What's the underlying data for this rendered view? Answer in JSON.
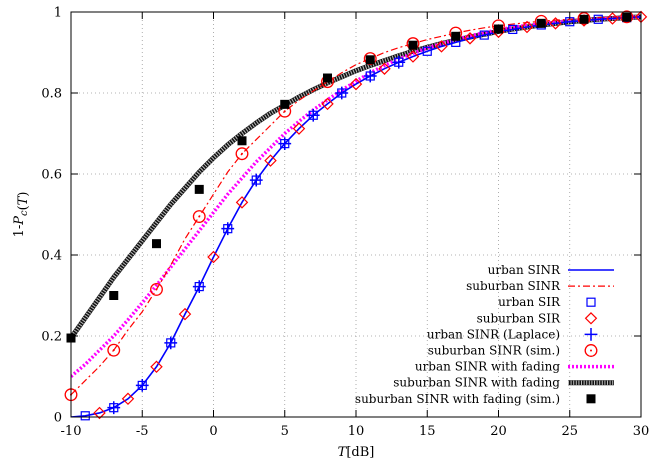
{
  "chart_data": {
    "type": "line",
    "title": "",
    "xlabel": "T[dB]",
    "ylabel": "1-Pc(T)",
    "xlim": [
      -10,
      30
    ],
    "ylim": [
      0,
      1
    ],
    "xticks": [
      "-10",
      "-5",
      "0",
      "5",
      "10",
      "15",
      "20",
      "25",
      "30"
    ],
    "yticks": [
      "0",
      "0.2",
      "0.4",
      "0.6",
      "0.8",
      "1"
    ],
    "grid": true,
    "grid_style": "dotted",
    "legend_position": "bottom-right",
    "series": [
      {
        "name": "urban SINR",
        "style": "line",
        "color": "#0000ff",
        "dash": "",
        "width": 1.6,
        "x": [
          -10,
          -9,
          -8,
          -7,
          -6,
          -5,
          -4,
          -3,
          -2,
          -1,
          0,
          1,
          2,
          3,
          4,
          5,
          6,
          7,
          8,
          9,
          10,
          11,
          12,
          13,
          14,
          15,
          16,
          17,
          18,
          19,
          20,
          21,
          22,
          23,
          24,
          25,
          26,
          27,
          28,
          29,
          30
        ],
        "y": [
          0.0,
          0.003,
          0.01,
          0.023,
          0.045,
          0.078,
          0.124,
          0.183,
          0.254,
          0.322,
          0.395,
          0.465,
          0.53,
          0.585,
          0.633,
          0.675,
          0.712,
          0.745,
          0.773,
          0.8,
          0.822,
          0.842,
          0.86,
          0.876,
          0.89,
          0.903,
          0.915,
          0.925,
          0.935,
          0.943,
          0.951,
          0.957,
          0.963,
          0.968,
          0.972,
          0.976,
          0.979,
          0.982,
          0.984,
          0.986,
          0.988
        ]
      },
      {
        "name": "suburban SINR",
        "style": "line",
        "color": "#ff0000",
        "dash": "7,3,2,3",
        "width": 1.2,
        "x": [
          -10,
          -9,
          -8,
          -7,
          -6,
          -5,
          -4,
          -3,
          -2,
          -1,
          0,
          1,
          2,
          3,
          4,
          5,
          6,
          7,
          8,
          9,
          10,
          11,
          12,
          13,
          14,
          15,
          16,
          17,
          18,
          19,
          20,
          21,
          22,
          23,
          24,
          25,
          26,
          27,
          28,
          29,
          30
        ],
        "y": [
          0.055,
          0.09,
          0.125,
          0.165,
          0.215,
          0.26,
          0.315,
          0.375,
          0.44,
          0.495,
          0.55,
          0.605,
          0.65,
          0.685,
          0.72,
          0.755,
          0.782,
          0.805,
          0.828,
          0.85,
          0.87,
          0.885,
          0.9,
          0.912,
          0.922,
          0.932,
          0.94,
          0.948,
          0.955,
          0.961,
          0.966,
          0.97,
          0.974,
          0.977,
          0.98,
          0.982,
          0.984,
          0.986,
          0.987,
          0.988,
          0.989
        ]
      },
      {
        "name": "urban SIR",
        "style": "markers",
        "marker": "square-open",
        "color": "#0000ff",
        "x": [
          -9,
          -7,
          -5,
          -3,
          -1,
          1,
          3,
          5,
          7,
          9,
          11,
          13,
          15,
          17,
          19,
          21,
          23,
          25,
          27,
          29
        ],
        "y": [
          0.003,
          0.023,
          0.078,
          0.183,
          0.322,
          0.465,
          0.585,
          0.675,
          0.745,
          0.8,
          0.842,
          0.876,
          0.903,
          0.925,
          0.943,
          0.957,
          0.968,
          0.976,
          0.982,
          0.986
        ]
      },
      {
        "name": "suburban SIR",
        "style": "markers",
        "marker": "diamond-open",
        "color": "#ff0000",
        "x": [
          -8,
          -6,
          -4,
          -2,
          0,
          2,
          4,
          6,
          8,
          10,
          12,
          14,
          16,
          18,
          20,
          22,
          24,
          26,
          28,
          30
        ],
        "y": [
          0.01,
          0.045,
          0.124,
          0.254,
          0.395,
          0.53,
          0.633,
          0.712,
          0.773,
          0.822,
          0.86,
          0.89,
          0.915,
          0.935,
          0.951,
          0.963,
          0.972,
          0.979,
          0.984,
          0.988
        ]
      },
      {
        "name": "urban SINR (Laplace)",
        "style": "markers",
        "marker": "plus",
        "color": "#0000ff",
        "x": [
          -7,
          -5,
          -3,
          -1,
          1,
          3,
          5,
          7,
          9,
          11,
          13
        ],
        "y": [
          0.023,
          0.078,
          0.183,
          0.322,
          0.465,
          0.585,
          0.675,
          0.745,
          0.8,
          0.842,
          0.876
        ]
      },
      {
        "name": "suburban SINR (sim.)",
        "style": "markers",
        "marker": "circle-open",
        "color": "#ff0000",
        "x": [
          -10,
          -7,
          -4,
          -1,
          2,
          5,
          8,
          11,
          14,
          17,
          20,
          23,
          26,
          29
        ],
        "y": [
          0.055,
          0.165,
          0.315,
          0.495,
          0.65,
          0.755,
          0.828,
          0.885,
          0.922,
          0.948,
          0.966,
          0.977,
          0.984,
          0.988
        ]
      },
      {
        "name": "suburban SINR with fading",
        "style": "line",
        "color": "#000000",
        "dash": "",
        "width": 5,
        "x": [
          -10,
          -9,
          -8,
          -7,
          -6,
          -5,
          -4,
          -3,
          -2,
          -1,
          0,
          1,
          2,
          3,
          4,
          5,
          6,
          7,
          8,
          9,
          10,
          11,
          12,
          13,
          14,
          15,
          16,
          17,
          18,
          19,
          20,
          21,
          22,
          23,
          24,
          25,
          26,
          27,
          28,
          29,
          30
        ],
        "y": [
          0.195,
          0.245,
          0.295,
          0.345,
          0.39,
          0.435,
          0.48,
          0.525,
          0.565,
          0.605,
          0.64,
          0.672,
          0.7,
          0.726,
          0.75,
          0.77,
          0.79,
          0.808,
          0.825,
          0.84,
          0.855,
          0.868,
          0.88,
          0.892,
          0.903,
          0.913,
          0.922,
          0.93,
          0.938,
          0.945,
          0.952,
          0.958,
          0.963,
          0.968,
          0.972,
          0.976,
          0.979,
          0.982,
          0.984,
          0.986,
          0.988
        ]
      },
      {
        "name": "urban SINR with fading",
        "style": "line",
        "color": "#ff00ff",
        "dash": "2,2",
        "width": 3.5,
        "x": [
          -10,
          -9,
          -8,
          -7,
          -6,
          -5,
          -4,
          -3,
          -2,
          -1,
          0,
          1,
          2,
          3,
          4,
          5,
          6,
          7,
          8,
          9,
          10,
          11,
          12,
          13,
          14,
          15,
          16,
          17,
          18,
          19,
          20,
          21,
          22,
          23,
          24,
          25,
          26,
          27,
          28,
          29,
          30
        ],
        "y": [
          0.1,
          0.13,
          0.165,
          0.2,
          0.24,
          0.282,
          0.325,
          0.37,
          0.415,
          0.46,
          0.505,
          0.55,
          0.59,
          0.63,
          0.665,
          0.7,
          0.73,
          0.758,
          0.783,
          0.807,
          0.829,
          0.85,
          0.868,
          0.884,
          0.898,
          0.911,
          0.922,
          0.932,
          0.941,
          0.949,
          0.956,
          0.962,
          0.967,
          0.971,
          0.975,
          0.978,
          0.981,
          0.983,
          0.985,
          0.987,
          0.988
        ]
      },
      {
        "name": "suburban SINR with fading (sim.)",
        "style": "markers",
        "marker": "square-filled",
        "color": "#000000",
        "x": [
          -10,
          -7,
          -4,
          -1,
          2,
          5,
          8,
          11,
          14,
          17,
          20,
          23,
          26,
          29
        ],
        "y": [
          0.195,
          0.3,
          0.428,
          0.562,
          0.682,
          0.772,
          0.837,
          0.882,
          0.918,
          0.94,
          0.958,
          0.972,
          0.982,
          0.987
        ]
      }
    ],
    "legend_order": [
      "urban SINR",
      "suburban SINR",
      "urban SIR",
      "suburban SIR",
      "urban SINR (Laplace)",
      "suburban SINR (sim.)",
      "urban SINR with fading",
      "suburban SINR with fading",
      "suburban SINR with fading (sim.)"
    ]
  }
}
